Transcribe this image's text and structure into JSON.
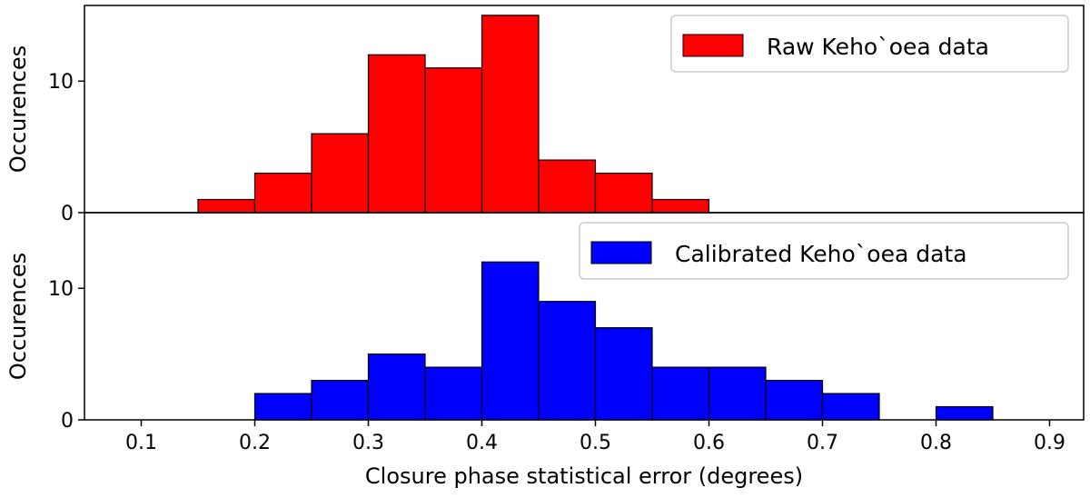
{
  "chart_data": [
    {
      "type": "bar",
      "panel": "top",
      "ylabel": "Occurences",
      "ylim": [
        0,
        15.75
      ],
      "yticks": [
        "0",
        "10"
      ],
      "bin_width": 0.05,
      "bins_left": [
        0.15,
        0.2,
        0.25,
        0.3,
        0.35,
        0.4,
        0.45,
        0.5,
        0.55
      ],
      "values": [
        1,
        3,
        6,
        12,
        11,
        15,
        4,
        3,
        1
      ],
      "color": "#ff0000",
      "legend": {
        "label": "Raw Keho`oea data",
        "placement": "top-right"
      }
    },
    {
      "type": "bar",
      "panel": "bottom",
      "ylabel": "Occurences",
      "xlabel": "Closure phase statistical error (degrees)",
      "ylim": [
        0,
        15.75
      ],
      "yticks": [
        "0",
        "10"
      ],
      "bin_width": 0.05,
      "bins_left": [
        0.2,
        0.25,
        0.3,
        0.35,
        0.4,
        0.45,
        0.5,
        0.55,
        0.6,
        0.65,
        0.7,
        0.8
      ],
      "values": [
        2,
        3,
        5,
        4,
        12,
        9,
        7,
        4,
        4,
        3,
        2,
        1
      ],
      "color": "#0000ff",
      "legend": {
        "label": "Calibrated Keho`oea data",
        "placement": "top-right"
      }
    }
  ],
  "x_axis": {
    "xlim": [
      0.05,
      0.93
    ],
    "ticks": [
      0.1,
      0.2,
      0.3,
      0.4,
      0.5,
      0.6,
      0.7,
      0.8,
      0.9
    ],
    "tick_labels": [
      "0.1",
      "0.2",
      "0.3",
      "0.4",
      "0.5",
      "0.6",
      "0.7",
      "0.8",
      "0.9"
    ]
  }
}
